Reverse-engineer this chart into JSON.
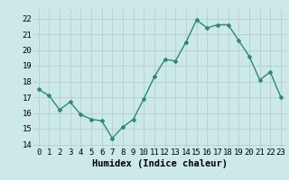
{
  "x": [
    0,
    1,
    2,
    3,
    4,
    5,
    6,
    7,
    8,
    9,
    10,
    11,
    12,
    13,
    14,
    15,
    16,
    17,
    18,
    19,
    20,
    21,
    22,
    23
  ],
  "y": [
    17.5,
    17.1,
    16.2,
    16.7,
    15.9,
    15.6,
    15.5,
    14.4,
    15.1,
    15.6,
    16.9,
    18.3,
    19.4,
    19.3,
    20.5,
    21.9,
    21.4,
    21.6,
    21.6,
    20.6,
    19.6,
    18.1,
    18.6,
    17.0
  ],
  "line_color": "#2e8b6e",
  "marker": "D",
  "marker_size": 2.0,
  "line_width": 1.0,
  "bg_color": "#cce8e8",
  "grid_color": "#b0d0d0",
  "xlabel": "Humidex (Indice chaleur)",
  "ylim": [
    13.8,
    22.6
  ],
  "yticks": [
    14,
    15,
    16,
    17,
    18,
    19,
    20,
    21,
    22
  ],
  "xticks": [
    0,
    1,
    2,
    3,
    4,
    5,
    6,
    7,
    8,
    9,
    10,
    11,
    12,
    13,
    14,
    15,
    16,
    17,
    18,
    19,
    20,
    21,
    22,
    23
  ],
  "xlabel_fontsize": 7.5,
  "tick_fontsize": 6.5,
  "xlim": [
    -0.5,
    23.5
  ]
}
